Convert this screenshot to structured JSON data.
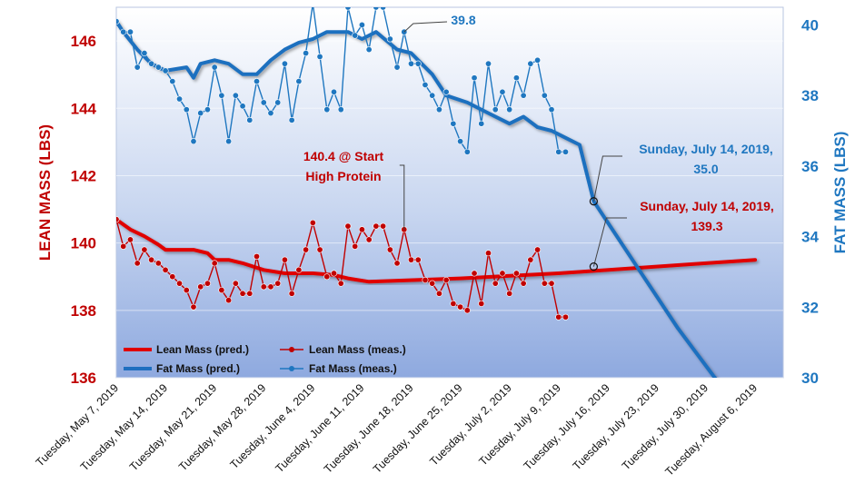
{
  "chart_data": {
    "type": "line",
    "x_axis": {
      "tick_labels": [
        "Tuesday, May 7, 2019",
        "Tuesday, May 14, 2019",
        "Tuesday, May 21, 2019",
        "Tuesday, May 28, 2019",
        "Tuesday, June 4, 2019",
        "Tuesday, June 11, 2019",
        "Tuesday, June 18, 2019",
        "Tuesday, June 25, 2019",
        "Tuesday, July 2, 2019",
        "Tuesday, July 9, 2019",
        "Tuesday, July 16, 2019",
        "Tuesday, July 23, 2019",
        "Tuesday, July 30, 2019",
        "Tuesday, August 6, 2019"
      ],
      "range": [
        "2019-05-07",
        "2019-08-10"
      ]
    },
    "y_left": {
      "label": "LEAN MASS (LBS)",
      "ylim": [
        136,
        147
      ],
      "ticks": [
        136,
        138,
        140,
        142,
        144,
        146
      ],
      "color": "#c00000"
    },
    "y_right": {
      "label": "FAT MASS (LBS)",
      "ylim": [
        30,
        40.5
      ],
      "ticks": [
        30,
        32,
        34,
        36,
        38,
        40
      ],
      "color": "#1f77c0"
    },
    "grid": "horizontal",
    "legend_placement": "bottom-left",
    "series": [
      {
        "name": "Lean Mass (pred.)",
        "axis": "left",
        "kind": "line",
        "color": "#e00000",
        "points": [
          [
            "2019-05-07",
            140.7
          ],
          [
            "2019-05-09",
            140.4
          ],
          [
            "2019-05-11",
            140.2
          ],
          [
            "2019-05-13",
            139.95
          ],
          [
            "2019-05-14",
            139.8
          ],
          [
            "2019-05-18",
            139.8
          ],
          [
            "2019-05-20",
            139.7
          ],
          [
            "2019-05-21",
            139.5
          ],
          [
            "2019-05-23",
            139.5
          ],
          [
            "2019-05-25",
            139.4
          ],
          [
            "2019-05-28",
            139.2
          ],
          [
            "2019-05-31",
            139.1
          ],
          [
            "2019-06-04",
            139.1
          ],
          [
            "2019-06-07",
            139.05
          ],
          [
            "2019-06-09",
            138.95
          ],
          [
            "2019-06-12",
            138.85
          ],
          [
            "2019-06-25",
            138.95
          ],
          [
            "2019-07-09",
            139.1
          ],
          [
            "2019-08-06",
            139.5
          ]
        ]
      },
      {
        "name": "Fat Mass (pred.)",
        "axis": "right",
        "kind": "line",
        "color": "#1f6fbf",
        "points": [
          [
            "2019-05-07",
            40.1
          ],
          [
            "2019-05-08",
            39.8
          ],
          [
            "2019-05-10",
            39.3
          ],
          [
            "2019-05-12",
            38.9
          ],
          [
            "2019-05-14",
            38.7
          ],
          [
            "2019-05-17",
            38.8
          ],
          [
            "2019-05-18",
            38.5
          ],
          [
            "2019-05-19",
            38.9
          ],
          [
            "2019-05-21",
            39.0
          ],
          [
            "2019-05-23",
            38.9
          ],
          [
            "2019-05-25",
            38.6
          ],
          [
            "2019-05-27",
            38.6
          ],
          [
            "2019-05-29",
            39.0
          ],
          [
            "2019-05-31",
            39.3
          ],
          [
            "2019-06-02",
            39.5
          ],
          [
            "2019-06-04",
            39.6
          ],
          [
            "2019-06-06",
            39.8
          ],
          [
            "2019-06-09",
            39.8
          ],
          [
            "2019-06-11",
            39.6
          ],
          [
            "2019-06-13",
            39.8
          ],
          [
            "2019-06-16",
            39.3
          ],
          [
            "2019-06-18",
            39.2
          ],
          [
            "2019-06-19",
            39.0
          ],
          [
            "2019-06-21",
            38.6
          ],
          [
            "2019-06-23",
            38.0
          ],
          [
            "2019-06-26",
            37.8
          ],
          [
            "2019-06-29",
            37.5
          ],
          [
            "2019-07-02",
            37.2
          ],
          [
            "2019-07-04",
            37.4
          ],
          [
            "2019-07-06",
            37.1
          ],
          [
            "2019-07-08",
            37.0
          ],
          [
            "2019-07-10",
            36.8
          ],
          [
            "2019-07-12",
            36.6
          ],
          [
            "2019-07-14",
            35.0
          ],
          [
            "2019-07-20",
            33.2
          ],
          [
            "2019-07-26",
            31.4
          ],
          [
            "2019-08-01",
            29.8
          ]
        ]
      },
      {
        "name": "Lean Mass (meas.)",
        "axis": "left",
        "kind": "line-markers",
        "color": "#c00000",
        "points": [
          [
            "2019-05-07",
            140.7
          ],
          [
            "2019-05-08",
            139.9
          ],
          [
            "2019-05-09",
            140.1
          ],
          [
            "2019-05-10",
            139.4
          ],
          [
            "2019-05-11",
            139.8
          ],
          [
            "2019-05-12",
            139.5
          ],
          [
            "2019-05-13",
            139.4
          ],
          [
            "2019-05-14",
            139.2
          ],
          [
            "2019-05-15",
            139.0
          ],
          [
            "2019-05-16",
            138.8
          ],
          [
            "2019-05-17",
            138.6
          ],
          [
            "2019-05-18",
            138.1
          ],
          [
            "2019-05-19",
            138.7
          ],
          [
            "2019-05-20",
            138.8
          ],
          [
            "2019-05-21",
            139.4
          ],
          [
            "2019-05-22",
            138.6
          ],
          [
            "2019-05-23",
            138.3
          ],
          [
            "2019-05-24",
            138.8
          ],
          [
            "2019-05-25",
            138.5
          ],
          [
            "2019-05-26",
            138.5
          ],
          [
            "2019-05-27",
            139.6
          ],
          [
            "2019-05-28",
            138.7
          ],
          [
            "2019-05-29",
            138.7
          ],
          [
            "2019-05-30",
            138.8
          ],
          [
            "2019-05-31",
            139.5
          ],
          [
            "2019-06-01",
            138.5
          ],
          [
            "2019-06-02",
            139.2
          ],
          [
            "2019-06-03",
            139.8
          ],
          [
            "2019-06-04",
            140.6
          ],
          [
            "2019-06-05",
            139.8
          ],
          [
            "2019-06-06",
            139.0
          ],
          [
            "2019-06-07",
            139.1
          ],
          [
            "2019-06-08",
            138.8
          ],
          [
            "2019-06-09",
            140.5
          ],
          [
            "2019-06-10",
            139.9
          ],
          [
            "2019-06-11",
            140.4
          ],
          [
            "2019-06-12",
            140.1
          ],
          [
            "2019-06-13",
            140.5
          ],
          [
            "2019-06-14",
            140.5
          ],
          [
            "2019-06-15",
            139.8
          ],
          [
            "2019-06-16",
            139.4
          ],
          [
            "2019-06-17",
            140.4
          ],
          [
            "2019-06-18",
            139.5
          ],
          [
            "2019-06-19",
            139.5
          ],
          [
            "2019-06-20",
            138.9
          ],
          [
            "2019-06-21",
            138.8
          ],
          [
            "2019-06-22",
            138.5
          ],
          [
            "2019-06-23",
            138.9
          ],
          [
            "2019-06-24",
            138.2
          ],
          [
            "2019-06-25",
            138.1
          ],
          [
            "2019-06-26",
            138.0
          ],
          [
            "2019-06-27",
            139.1
          ],
          [
            "2019-06-28",
            138.2
          ],
          [
            "2019-06-29",
            139.7
          ],
          [
            "2019-06-30",
            138.8
          ],
          [
            "2019-07-01",
            139.1
          ],
          [
            "2019-07-02",
            138.5
          ],
          [
            "2019-07-03",
            139.1
          ],
          [
            "2019-07-04",
            138.8
          ],
          [
            "2019-07-05",
            139.5
          ],
          [
            "2019-07-06",
            139.8
          ],
          [
            "2019-07-07",
            138.8
          ],
          [
            "2019-07-08",
            138.8
          ],
          [
            "2019-07-09",
            137.8
          ],
          [
            "2019-07-10",
            137.8
          ]
        ]
      },
      {
        "name": "Fat Mass (meas.)",
        "axis": "right",
        "kind": "line-markers",
        "color": "#1f77c0",
        "points": [
          [
            "2019-05-07",
            40.1
          ],
          [
            "2019-05-08",
            39.8
          ],
          [
            "2019-05-09",
            39.8
          ],
          [
            "2019-05-10",
            38.8
          ],
          [
            "2019-05-11",
            39.2
          ],
          [
            "2019-05-12",
            38.9
          ],
          [
            "2019-05-13",
            38.8
          ],
          [
            "2019-05-14",
            38.7
          ],
          [
            "2019-05-15",
            38.4
          ],
          [
            "2019-05-16",
            37.9
          ],
          [
            "2019-05-17",
            37.6
          ],
          [
            "2019-05-18",
            36.7
          ],
          [
            "2019-05-19",
            37.5
          ],
          [
            "2019-05-20",
            37.6
          ],
          [
            "2019-05-21",
            38.8
          ],
          [
            "2019-05-22",
            38.0
          ],
          [
            "2019-05-23",
            36.7
          ],
          [
            "2019-05-24",
            38.0
          ],
          [
            "2019-05-25",
            37.7
          ],
          [
            "2019-05-26",
            37.3
          ],
          [
            "2019-05-27",
            38.4
          ],
          [
            "2019-05-28",
            37.8
          ],
          [
            "2019-05-29",
            37.5
          ],
          [
            "2019-05-30",
            37.8
          ],
          [
            "2019-05-31",
            38.9
          ],
          [
            "2019-06-01",
            37.3
          ],
          [
            "2019-06-02",
            38.4
          ],
          [
            "2019-06-03",
            39.2
          ],
          [
            "2019-06-04",
            40.6
          ],
          [
            "2019-06-05",
            39.1
          ],
          [
            "2019-06-06",
            37.6
          ],
          [
            "2019-06-07",
            38.1
          ],
          [
            "2019-06-08",
            37.6
          ],
          [
            "2019-06-09",
            40.5
          ],
          [
            "2019-06-10",
            39.7
          ],
          [
            "2019-06-11",
            40.0
          ],
          [
            "2019-06-12",
            39.3
          ],
          [
            "2019-06-13",
            40.5
          ],
          [
            "2019-06-14",
            40.5
          ],
          [
            "2019-06-15",
            39.6
          ],
          [
            "2019-06-16",
            38.8
          ],
          [
            "2019-06-17",
            39.8
          ],
          [
            "2019-06-18",
            38.9
          ],
          [
            "2019-06-19",
            38.9
          ],
          [
            "2019-06-20",
            38.3
          ],
          [
            "2019-06-21",
            38.0
          ],
          [
            "2019-06-22",
            37.6
          ],
          [
            "2019-06-23",
            38.1
          ],
          [
            "2019-06-24",
            37.2
          ],
          [
            "2019-06-25",
            36.7
          ],
          [
            "2019-06-26",
            36.4
          ],
          [
            "2019-06-27",
            38.5
          ],
          [
            "2019-06-28",
            37.2
          ],
          [
            "2019-06-29",
            38.9
          ],
          [
            "2019-06-30",
            37.6
          ],
          [
            "2019-07-01",
            38.1
          ],
          [
            "2019-07-02",
            37.6
          ],
          [
            "2019-07-03",
            38.5
          ],
          [
            "2019-07-04",
            38.0
          ],
          [
            "2019-07-05",
            38.9
          ],
          [
            "2019-07-06",
            39.0
          ],
          [
            "2019-07-07",
            38.0
          ],
          [
            "2019-07-08",
            37.6
          ],
          [
            "2019-07-09",
            36.4
          ],
          [
            "2019-07-10",
            36.4
          ]
        ]
      }
    ],
    "annotations": [
      {
        "id": "fat-peak",
        "axis": "right",
        "date": "2019-06-17",
        "value": 39.8,
        "lines": [
          "39.8"
        ],
        "color": "#1f77c0"
      },
      {
        "id": "lean-start",
        "axis": "left",
        "date": "2019-06-17",
        "value": 140.4,
        "lines": [
          "140.4 @ Start",
          "High Protein"
        ],
        "color": "#c00000"
      },
      {
        "id": "fat-pred",
        "axis": "right",
        "date": "2019-07-14",
        "value": 35.0,
        "lines": [
          "Sunday, July 14, 2019,",
          "35.0"
        ],
        "color": "#1f77c0"
      },
      {
        "id": "lean-pred",
        "axis": "left",
        "date": "2019-07-14",
        "value": 139.3,
        "lines": [
          "Sunday, July 14, 2019,",
          "139.3"
        ],
        "color": "#c00000"
      }
    ]
  }
}
